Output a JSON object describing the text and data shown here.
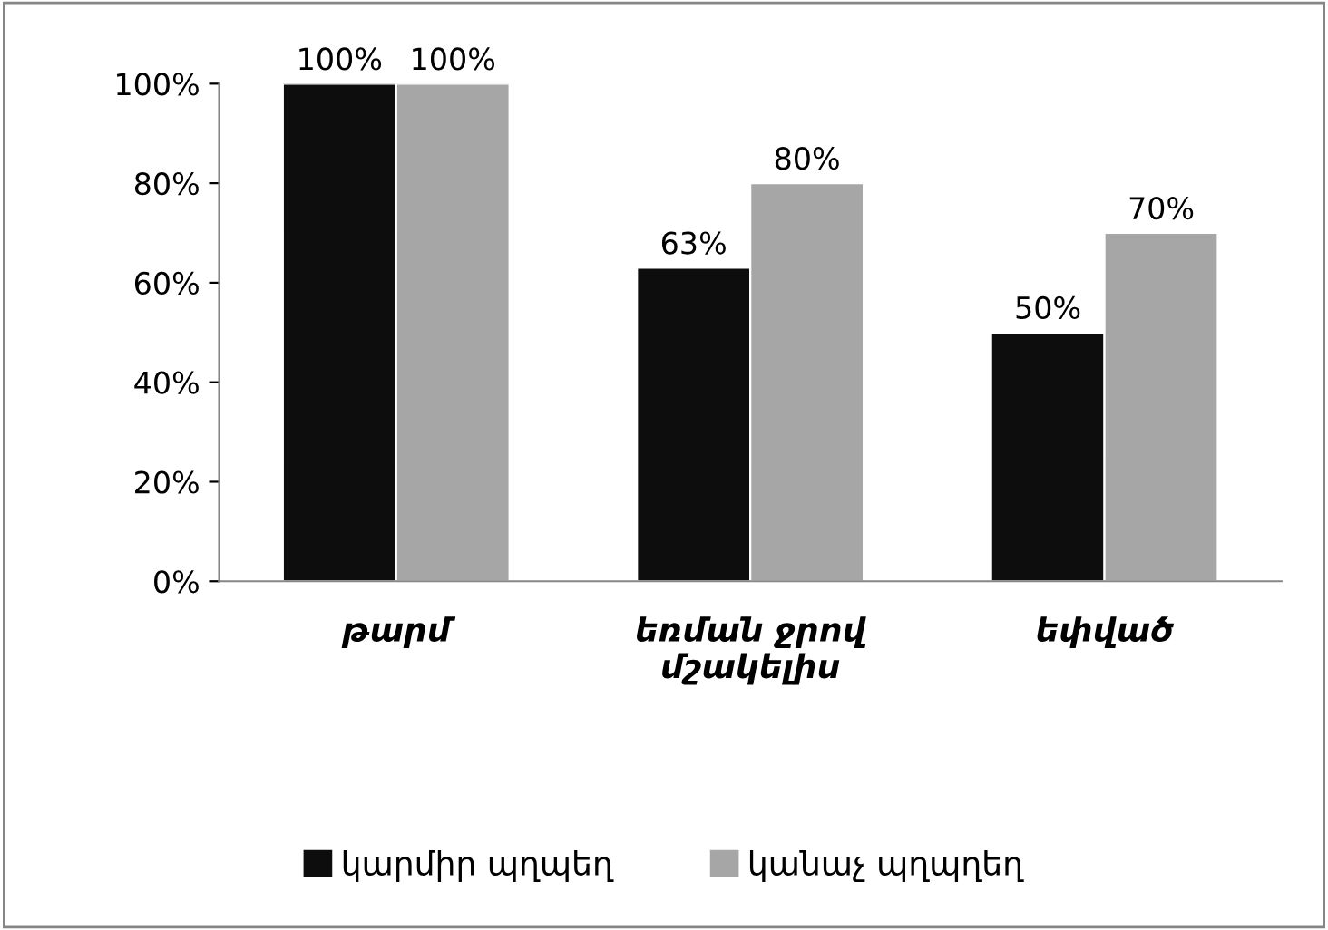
{
  "chart_data": {
    "type": "bar",
    "categories": [
      "թարմ",
      "եռման ջրով\nմշակելիս",
      "եփված"
    ],
    "series": [
      {
        "name": "կարմիր պղպեղ",
        "color": "#0d0d0d",
        "values": [
          100,
          63,
          50
        ],
        "value_labels": [
          "100%",
          "63%",
          "50%"
        ]
      },
      {
        "name": "կանաչ պղպղեղ",
        "color": "#a6a6a6",
        "values": [
          100,
          80,
          70
        ],
        "value_labels": [
          "100%",
          "80%",
          "70%"
        ]
      }
    ],
    "ylim": [
      0,
      100
    ],
    "yticks": [
      {
        "value": 0,
        "label": "0%"
      },
      {
        "value": 20,
        "label": "20%"
      },
      {
        "value": 40,
        "label": "40%"
      },
      {
        "value": 60,
        "label": "60%"
      },
      {
        "value": 80,
        "label": "80%"
      },
      {
        "value": 100,
        "label": "100%"
      }
    ],
    "grid": false,
    "legend": "bottom"
  }
}
